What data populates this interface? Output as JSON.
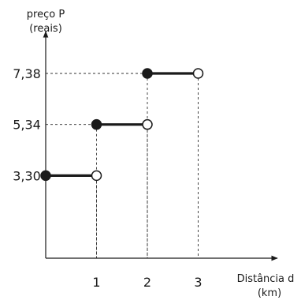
{
  "chart_data": {
    "type": "step",
    "title": "",
    "xlabel": [
      "Distância d",
      "(km)"
    ],
    "ylabel": [
      "preço P",
      "(reais)"
    ],
    "x_ticks": [
      "1",
      "2",
      "3"
    ],
    "y_ticks": [
      "3,30",
      "5,34",
      "7,38"
    ],
    "xlim": [
      0,
      4.45
    ],
    "ylim": [
      0,
      9.0
    ],
    "segments": [
      {
        "x_start": 0,
        "x_end": 1,
        "y": 3.3,
        "start": "closed",
        "end": "open"
      },
      {
        "x_start": 1,
        "x_end": 2,
        "y": 5.34,
        "start": "closed",
        "end": "open"
      },
      {
        "x_start": 2,
        "x_end": 3,
        "y": 7.38,
        "start": "closed",
        "end": "open"
      }
    ],
    "guide_lines": "dashed",
    "grid": false,
    "legend": "none"
  }
}
